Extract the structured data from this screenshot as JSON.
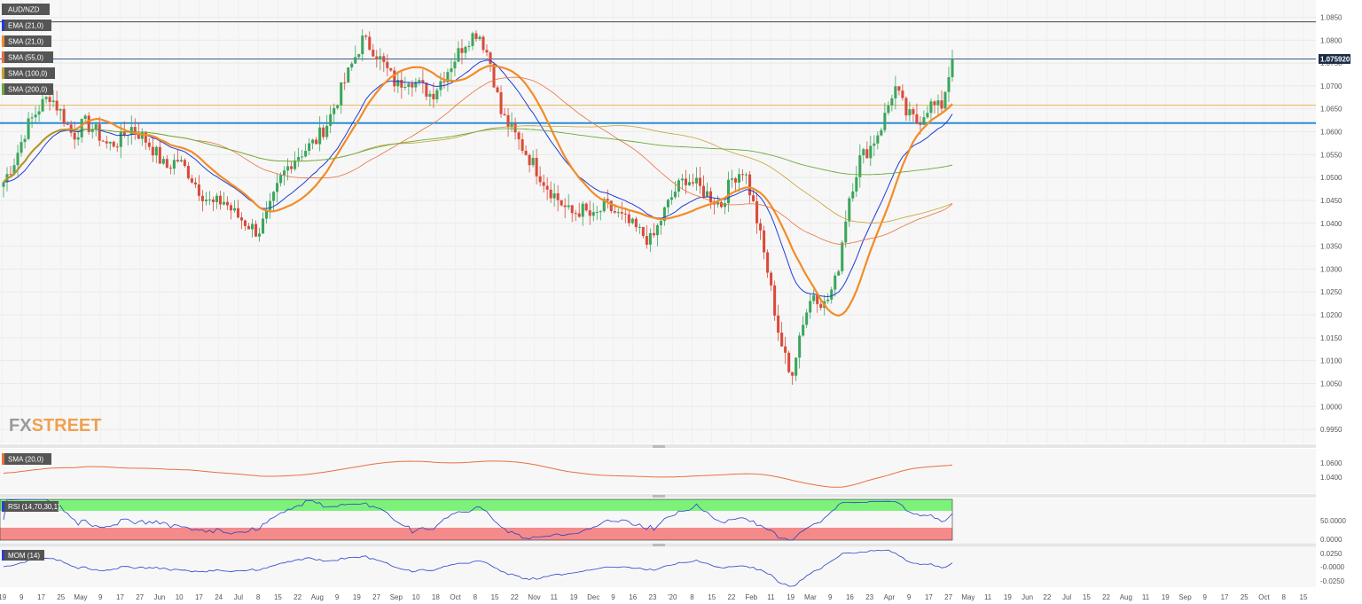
{
  "chart_data": {
    "type": "candlestick",
    "symbol": "AUD/NZD",
    "indicators_overlay": [
      "EMA (21,0)",
      "SMA (21,0)",
      "SMA (55,0)",
      "SMA (100,0)",
      "SMA (200,0)"
    ],
    "indicator_colors": [
      "#1f3dd6",
      "#f28c28",
      "#e8703a",
      "#c8a030",
      "#6aaa3a"
    ],
    "price_axis": {
      "ticks": [
        "1.0850",
        "1.0800",
        "1.0750",
        "1.0700",
        "1.0650",
        "1.0600",
        "1.0550",
        "1.0500",
        "1.0450",
        "1.0400",
        "1.0350",
        "1.0300",
        "1.0250",
        "1.0200",
        "1.0150",
        "1.0100",
        "1.0050",
        "1.0000",
        "0.9950"
      ],
      "range": [
        0.9925,
        1.088
      ],
      "current_price": "1.075920"
    },
    "horizontal_lines": [
      {
        "price": 1.084,
        "color": "#444444"
      },
      {
        "price": 1.0759,
        "color": "#3a5a8a"
      },
      {
        "price": 1.0658,
        "color": "#e8b45a"
      },
      {
        "price": 1.0619,
        "color": "#2a8ed6"
      }
    ],
    "x_axis_labels": [
      "'19",
      "9",
      "17",
      "25",
      "May",
      "9",
      "17",
      "27",
      "Jun",
      "10",
      "17",
      "24",
      "Jul",
      "8",
      "15",
      "22",
      "Aug",
      "9",
      "19",
      "27",
      "Sep",
      "10",
      "18",
      "Oct",
      "8",
      "15",
      "22",
      "Nov",
      "11",
      "19",
      "Dec",
      "9",
      "16",
      "23",
      "'20",
      "8",
      "15",
      "22",
      "Feb",
      "11",
      "19",
      "Mar",
      "9",
      "16",
      "23",
      "Apr",
      "9",
      "17",
      "27",
      "May",
      "11",
      "19",
      "Jun",
      "22",
      "Jul",
      "15",
      "22",
      "Aug",
      "11",
      "19",
      "Sep",
      "9",
      "17",
      "25",
      "Oct",
      "8",
      "15"
    ],
    "close_series_approx": [
      1.049,
      1.054,
      1.061,
      1.065,
      1.068,
      1.064,
      1.059,
      1.062,
      1.06,
      1.057,
      1.058,
      1.061,
      1.059,
      1.056,
      1.052,
      1.054,
      1.051,
      1.047,
      1.044,
      1.045,
      1.042,
      1.04,
      1.038,
      1.043,
      1.05,
      1.054,
      1.056,
      1.058,
      1.062,
      1.068,
      1.074,
      1.08,
      1.078,
      1.074,
      1.07,
      1.072,
      1.07,
      1.068,
      1.072,
      1.076,
      1.08,
      1.082,
      1.076,
      1.064,
      1.06,
      1.056,
      1.052,
      1.048,
      1.045,
      1.042,
      1.043,
      1.041,
      1.044,
      1.042,
      1.04,
      1.038,
      1.036,
      1.042,
      1.047,
      1.05,
      1.048,
      1.046,
      1.044,
      1.05,
      1.052,
      1.042,
      1.03,
      1.016,
      1.006,
      1.018,
      1.025,
      1.022,
      1.028,
      1.045,
      1.054,
      1.057,
      1.062,
      1.07,
      1.064,
      1.062,
      1.066,
      1.065,
      1.0759
    ],
    "subpanels": [
      {
        "name": "SMA (20,0)",
        "axis": [
          "1.0600",
          "1.0400"
        ]
      },
      {
        "name": "RSI (14,70,30,1)",
        "axis": [
          "50.0000",
          "0.0000"
        ]
      },
      {
        "name": "MOM (14)",
        "axis": [
          "0.0250",
          "-0.0000",
          "-0.0250"
        ]
      }
    ],
    "watermark": "FXSTREET"
  }
}
